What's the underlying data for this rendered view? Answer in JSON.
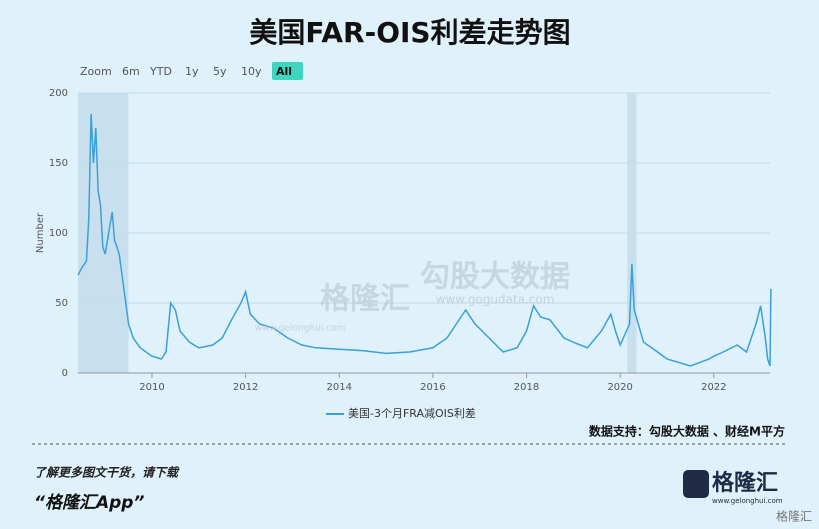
{
  "chart_data": {
    "type": "line",
    "title": "美国FAR-OIS利差走势图",
    "range_buttons": [
      "Zoom",
      "6m",
      "YTD",
      "1y",
      "5y",
      "10y",
      "All"
    ],
    "active_button": "All",
    "ylabel": "Number",
    "x": [
      2008.42,
      2008.5,
      2008.6,
      2008.65,
      2008.7,
      2008.75,
      2008.8,
      2008.85,
      2008.9,
      2008.95,
      2009.0,
      2009.1,
      2009.15,
      2009.2,
      2009.3,
      2009.4,
      2009.5,
      2009.6,
      2009.75,
      2010.0,
      2010.2,
      2010.3,
      2010.4,
      2010.5,
      2010.6,
      2010.8,
      2011.0,
      2011.3,
      2011.5,
      2011.7,
      2011.9,
      2012.0,
      2012.1,
      2012.3,
      2012.6,
      2012.9,
      2013.2,
      2013.5,
      2014.0,
      2014.5,
      2015.0,
      2015.5,
      2016.0,
      2016.3,
      2016.6,
      2016.7,
      2016.9,
      2017.2,
      2017.5,
      2017.8,
      2018.0,
      2018.15,
      2018.3,
      2018.5,
      2018.8,
      2019.0,
      2019.3,
      2019.6,
      2019.8,
      2019.9,
      2020.0,
      2020.2,
      2020.25,
      2020.3,
      2020.5,
      2020.8,
      2021.0,
      2021.5,
      2021.9,
      2022.0,
      2022.2,
      2022.5,
      2022.7,
      2022.9,
      2023.0,
      2023.1,
      2023.15,
      2023.2,
      2023.22
    ],
    "series": [
      {
        "name": "美国-3个月FRA减OIS利差",
        "color": "#3aa0d8",
        "values": [
          70,
          75,
          80,
          110,
          185,
          150,
          175,
          130,
          120,
          90,
          85,
          105,
          115,
          95,
          85,
          60,
          35,
          25,
          18,
          12,
          10,
          15,
          50,
          45,
          30,
          22,
          18,
          20,
          25,
          38,
          50,
          58,
          42,
          35,
          32,
          25,
          20,
          18,
          17,
          16,
          14,
          15,
          18,
          25,
          40,
          45,
          35,
          25,
          15,
          18,
          30,
          48,
          40,
          38,
          25,
          22,
          18,
          30,
          42,
          30,
          20,
          35,
          78,
          45,
          22,
          15,
          10,
          5,
          10,
          12,
          15,
          20,
          15,
          35,
          48,
          25,
          10,
          5,
          60
        ]
      }
    ],
    "xlim": [
      2008.42,
      2023.2
    ],
    "xticks": [
      2010,
      2012,
      2014,
      2016,
      2018,
      2020,
      2022
    ],
    "ylim": [
      0,
      200
    ],
    "yticks": [
      0,
      50,
      100,
      150,
      200
    ],
    "grid": true,
    "shaded_ranges": [
      [
        2008.42,
        2009.5
      ],
      [
        2020.15,
        2020.35
      ]
    ]
  },
  "source": "数据支持：勾股大数据 、财经M平方",
  "footer": {
    "prompt": "了解更多图文干货，请下载",
    "app": "“格隆汇App”",
    "logo": "格隆汇",
    "url": "www.gelonghui.com",
    "corner": "格隆汇"
  },
  "watermark": {
    "left": "格隆汇",
    "left_url": "www.gelonghui.com",
    "right": "勾股大数据",
    "right_url": "www.gogudata.com"
  }
}
